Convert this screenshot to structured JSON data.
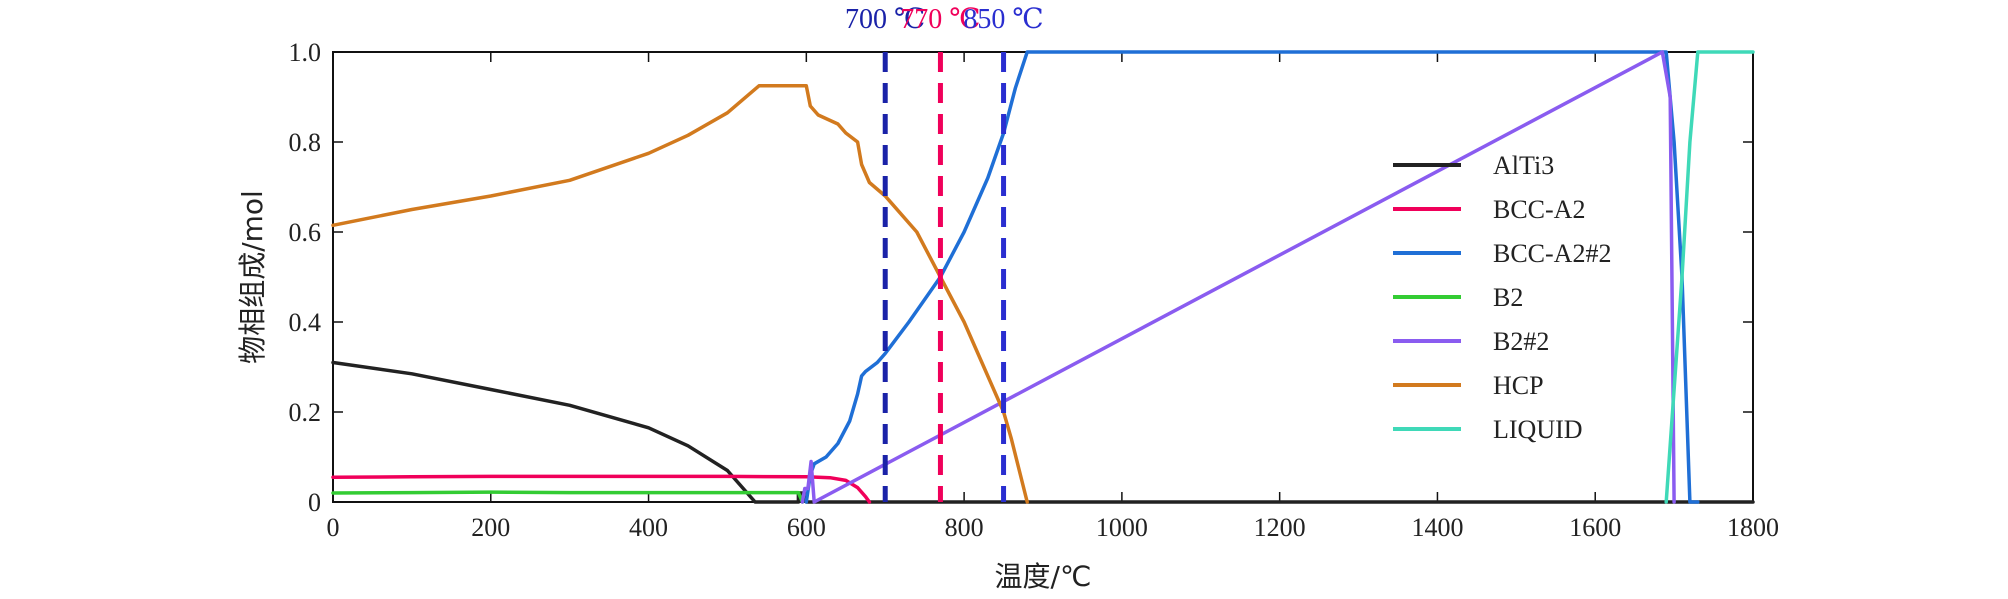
{
  "chart_data": {
    "type": "line",
    "title": "",
    "xlabel": "温度/℃",
    "ylabel": "物相组成/mol",
    "xlim": [
      0,
      1800
    ],
    "ylim": [
      0,
      1.0
    ],
    "xticks": [
      0,
      200,
      400,
      600,
      800,
      1000,
      1200,
      1400,
      1600,
      1800
    ],
    "yticks": [
      0,
      0.2,
      0.4,
      0.6,
      0.8,
      1.0
    ],
    "xtick_labels": [
      "0",
      "200",
      "400",
      "600",
      "800",
      "1000",
      "1200",
      "1400",
      "1600",
      "1800"
    ],
    "ytick_labels": [
      "0",
      "0.2",
      "0.4",
      "0.6",
      "0.8",
      "1.0"
    ],
    "grid": false,
    "legend_position": "right",
    "series": [
      {
        "name": "AlTi3",
        "color": "#222222",
        "x": [
          0,
          100,
          200,
          300,
          400,
          450,
          500,
          535,
          590,
          590,
          595,
          600,
          605,
          660,
          670,
          680,
          700,
          730,
          760,
          800,
          850,
          880,
          900,
          1000,
          1200,
          1400,
          1600,
          1800
        ],
        "y": [
          0.31,
          0.285,
          0.25,
          0.215,
          0.165,
          0.125,
          0.07,
          0.0,
          0.0,
          0.02,
          0.02,
          0.0,
          0.0,
          0.0,
          0.0,
          0.0,
          0.0,
          0.0,
          0.0,
          0.0,
          0.0,
          0.0,
          0.0,
          0.0,
          0.0,
          0.0,
          0.0,
          0.0
        ]
      },
      {
        "name": "BCC-A2",
        "color": "#f0005a",
        "x": [
          0,
          100,
          200,
          300,
          400,
          500,
          600,
          630,
          650,
          665,
          675,
          680
        ],
        "y": [
          0.055,
          0.056,
          0.057,
          0.057,
          0.057,
          0.057,
          0.056,
          0.054,
          0.048,
          0.032,
          0.012,
          0.0
        ]
      },
      {
        "name": "BCC-A2#2",
        "color": "#1f6fd6",
        "x": [
          600,
          605,
          610,
          625,
          640,
          655,
          665,
          670,
          675,
          690,
          700,
          730,
          770,
          800,
          830,
          850,
          865,
          880,
          900,
          1000,
          1200,
          1400,
          1600,
          1690,
          1700,
          1710,
          1720,
          1730
        ],
        "y": [
          0.0,
          0.06,
          0.085,
          0.1,
          0.13,
          0.18,
          0.24,
          0.28,
          0.29,
          0.31,
          0.33,
          0.4,
          0.5,
          0.6,
          0.72,
          0.82,
          0.92,
          1.0,
          1.0,
          1.0,
          1.0,
          1.0,
          1.0,
          1.0,
          0.8,
          0.5,
          0.0,
          0.0
        ]
      },
      {
        "name": "B2",
        "color": "#33cc33",
        "x": [
          0,
          100,
          200,
          300,
          400,
          500,
          590,
          595
        ],
        "y": [
          0.02,
          0.021,
          0.022,
          0.021,
          0.021,
          0.021,
          0.021,
          0.0
        ]
      },
      {
        "name": "B2#2",
        "color": "#8a5cf0",
        "x": [
          595,
          598,
          602,
          606,
          610,
          1685,
          1695,
          1700
        ],
        "y": [
          0.0,
          0.03,
          0.03,
          0.09,
          0.0,
          1.0,
          0.9,
          0.0
        ]
      },
      {
        "name": "HCP",
        "color": "#d27a1e",
        "x": [
          0,
          100,
          200,
          300,
          400,
          450,
          500,
          540,
          560,
          580,
          600,
          605,
          615,
          640,
          650,
          665,
          670,
          680,
          700,
          740,
          770,
          800,
          830,
          850,
          860,
          870,
          880
        ],
        "y": [
          0.615,
          0.65,
          0.68,
          0.715,
          0.775,
          0.815,
          0.865,
          0.925,
          0.925,
          0.925,
          0.925,
          0.88,
          0.86,
          0.84,
          0.82,
          0.8,
          0.75,
          0.71,
          0.68,
          0.6,
          0.5,
          0.4,
          0.28,
          0.2,
          0.14,
          0.07,
          0.0
        ]
      },
      {
        "name": "LIQUID",
        "color": "#3fd9b8",
        "x": [
          1690,
          1700,
          1710,
          1720,
          1730,
          1800
        ],
        "y": [
          0.0,
          0.25,
          0.5,
          0.8,
          1.0,
          1.0
        ]
      }
    ],
    "annotations": [
      {
        "label": "700 ℃",
        "x": 700,
        "color": "#1a22a8"
      },
      {
        "label": "770 ℃",
        "x": 770,
        "color": "#f0005a"
      },
      {
        "label": "850 ℃",
        "x": 850,
        "color": "#2a2ed0"
      }
    ]
  }
}
